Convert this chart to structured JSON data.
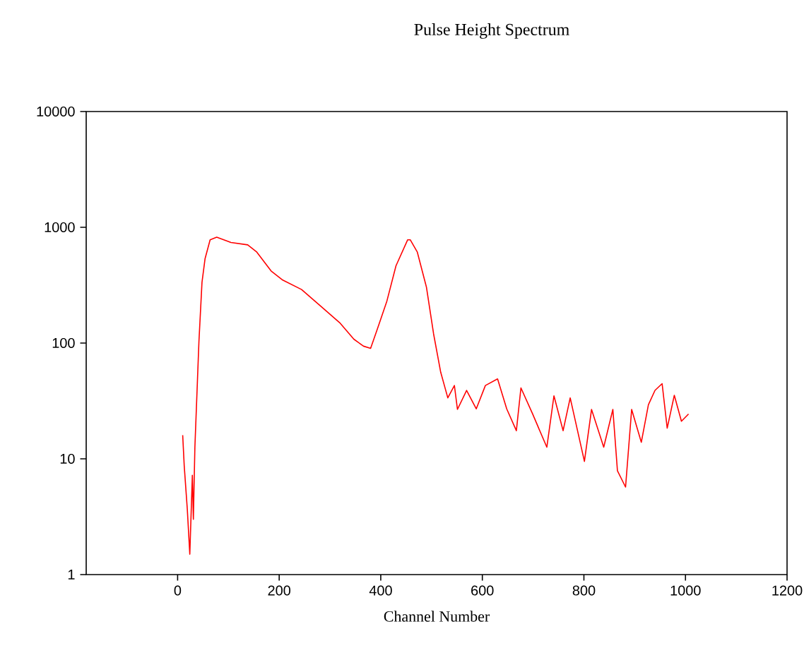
{
  "chart_data": {
    "type": "line",
    "title": "Pulse Height Spectrum",
    "xlabel": "Channel Number",
    "x": [
      10,
      13,
      19,
      24,
      29,
      31,
      34,
      39,
      42,
      48,
      54,
      64,
      77,
      105,
      138,
      156,
      184,
      207,
      244,
      282,
      319,
      347,
      366,
      380,
      393,
      412,
      430,
      453,
      458,
      472,
      490,
      504,
      518,
      532,
      545,
      551,
      569,
      588,
      606,
      630,
      648,
      667,
      676,
      699,
      727,
      741,
      759,
      773,
      801,
      815,
      839,
      857,
      866,
      882,
      894,
      913,
      927,
      940,
      954,
      964,
      978,
      992,
      1006
    ],
    "series": [
      {
        "color": "#ff0000",
        "values": [
          16,
          8.7,
          3.7,
          1.5,
          7.2,
          3,
          12.6,
          47,
          104,
          335,
          535,
          780,
          820,
          740,
          705,
          610,
          420,
          350,
          290,
          208,
          150,
          108,
          94,
          90,
          131,
          230,
          465,
          780,
          780,
          610,
          303,
          120,
          56,
          33.6,
          43,
          26.7,
          39,
          27,
          43,
          49,
          27,
          17.5,
          41,
          24.4,
          12.6,
          35,
          17.5,
          33.6,
          9.5,
          26.7,
          12.6,
          26.7,
          7.9,
          5.7,
          26.7,
          13.9,
          29.3,
          39,
          44.6,
          18.4,
          35.4,
          21.1,
          24.4
        ]
      }
    ],
    "log": "y",
    "xlim": [
      -180,
      1200
    ],
    "ylim": [
      1,
      10000
    ],
    "xticks": [
      0,
      200,
      400,
      600,
      800,
      1000,
      1200
    ],
    "yticks": [
      1,
      10,
      100,
      1000,
      10000
    ],
    "grid": false,
    "marker": "none",
    "line_style": "solid"
  }
}
